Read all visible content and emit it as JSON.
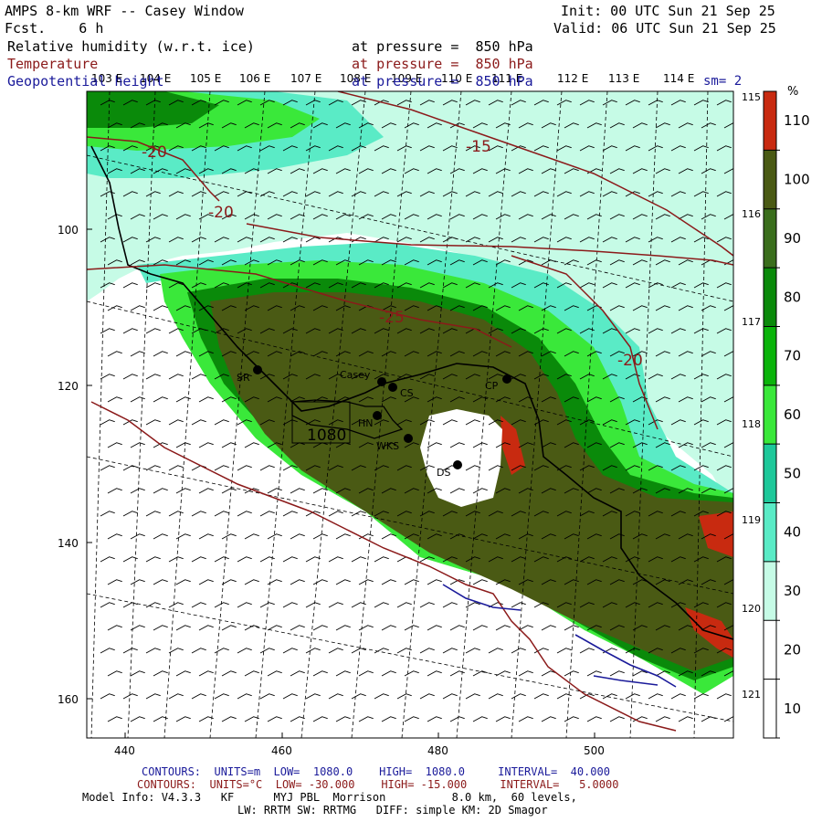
{
  "header": {
    "title": "AMPS 8-km WRF -- Casey Window",
    "fcst_label": "Fcst.",
    "fcst_value": "6 h",
    "init": "Init: 00 UTC Sun 21 Sep 25",
    "valid": "Valid: 06 UTC Sun 21 Sep 25",
    "field1": "Relative humidity (w.r.t. ice)",
    "field2": "Temperature",
    "field3": "Geopotential height",
    "pressure1": "at pressure =  850 hPa",
    "pressure2": "at pressure =  850 hPa",
    "pressure3": "at pressure =  850 hPa",
    "sm": "sm= 2"
  },
  "colorbar": {
    "unit": "%",
    "labels": [
      "110",
      "100",
      "90",
      "80",
      "70",
      "60",
      "50",
      "40",
      "30",
      "20",
      "10"
    ],
    "colors": [
      "#c82a10",
      "#4a5a14",
      "#3a6e1c",
      "#0a8a0a",
      "#0ab40a",
      "#3ae83a",
      "#1ec89a",
      "#5aebc6",
      "#c6fbe6",
      "#ffffff",
      "#ffffff"
    ]
  },
  "lon_labels_top": [
    "103 E",
    "104 E",
    "105 E",
    "106 E",
    "107 E",
    "108 E",
    "109 E",
    "110 E",
    "111 E",
    "112 E",
    "113 E",
    "114 E"
  ],
  "lon_labels_right": [
    "115 E",
    "116 E",
    "117 E",
    "118 E",
    "119 E",
    "120 E",
    "121 E"
  ],
  "y_axis": {
    "ticks": [
      "100",
      "120",
      "140",
      "160"
    ]
  },
  "x_axis": {
    "ticks": [
      "440",
      "460",
      "480",
      "500"
    ]
  },
  "temp_labels": [
    "-20",
    "-20",
    "-15",
    "-25",
    "-20"
  ],
  "height_label": "1080",
  "stations": [
    "SR",
    "Casey",
    "CS",
    "HN",
    "WKS",
    "DS",
    "CP"
  ],
  "footer": {
    "line1_prefix": "CONTOURS:  UNITS=m  LOW=  1080.0",
    "line1_high": "HIGH=  1080.0",
    "line1_interval": "INTERVAL=  40.000",
    "line2_prefix": "CONTOURS:  UNITS=°C  LOW= -30.000",
    "line2_high": "HIGH= -15.000",
    "line2_interval": "INTERVAL=   5.0000",
    "line3": "Model Info: V4.3.3   KF      MYJ PBL  Morrison          8.0 km,  60 levels,",
    "line4": "LW: RRTM SW: RRTMG   DIFF: simple KM: 2D Smagor"
  },
  "colors": {
    "rh_contour": "#000000",
    "temp_contour": "#8b1a1a",
    "height_contour": "#1a1a9a"
  }
}
